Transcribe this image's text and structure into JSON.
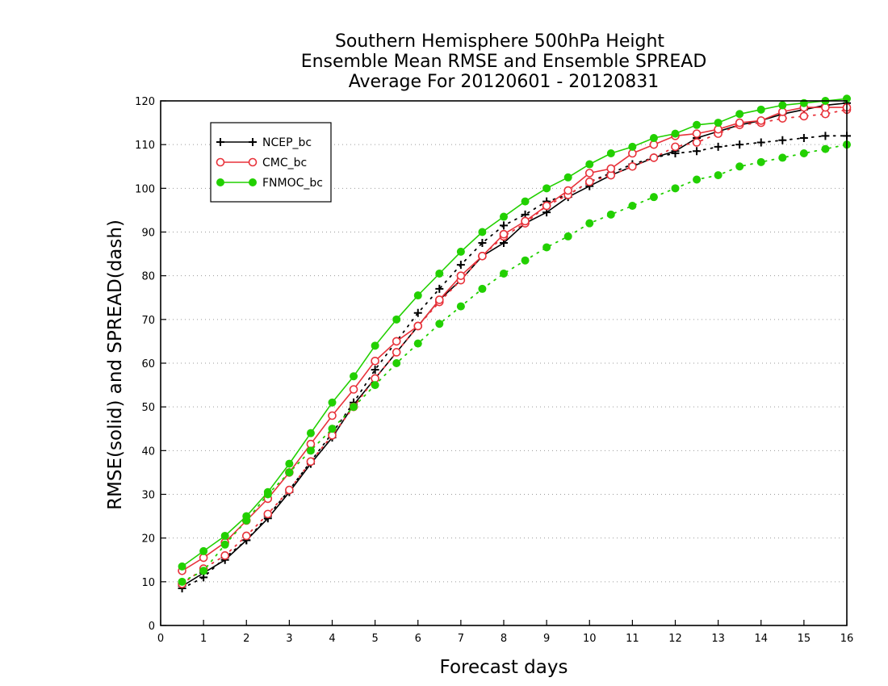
{
  "chart_data": {
    "type": "line",
    "title_lines": [
      "Southern Hemisphere 500hPa Height",
      "Ensemble Mean RMSE and Ensemble SPREAD",
      "Average For 20120601 - 20120831"
    ],
    "xlabel": "Forecast days",
    "ylabel": "RMSE(solid) and SPREAD(dash)",
    "xlim": [
      0,
      16
    ],
    "ylim": [
      0,
      120
    ],
    "xticks": [
      "0",
      "1",
      "2",
      "3",
      "4",
      "5",
      "6",
      "7",
      "8",
      "9",
      "10",
      "11",
      "12",
      "13",
      "14",
      "15",
      "16"
    ],
    "yticks": [
      "0",
      "10",
      "20",
      "30",
      "40",
      "50",
      "60",
      "70",
      "80",
      "90",
      "100",
      "110",
      "120"
    ],
    "grid": "horizontal dotted",
    "legend_position": "top-left",
    "x": [
      0.5,
      1,
      1.5,
      2,
      2.5,
      3,
      3.5,
      4,
      4.5,
      5,
      5.5,
      6,
      6.5,
      7,
      7.5,
      8,
      8.5,
      9,
      9.5,
      10,
      10.5,
      11,
      11.5,
      12,
      12.5,
      13,
      13.5,
      14,
      14.5,
      15,
      15.5,
      16
    ],
    "series": [
      {
        "name": "NCEP_bc",
        "color": "#000000",
        "marker": "plus",
        "rmse": [
          9,
          12,
          15,
          19.5,
          24.5,
          30.5,
          37,
          43,
          50.5,
          56.5,
          62.5,
          68.5,
          74.5,
          79,
          84.5,
          87.5,
          92,
          94.5,
          98,
          100.5,
          103,
          105,
          107,
          108.5,
          111.5,
          113,
          114.5,
          115.5,
          117,
          118,
          119,
          119.5
        ],
        "spread": [
          8.5,
          11,
          15.5,
          19.5,
          25,
          31,
          37.5,
          44,
          51,
          58.5,
          65,
          71.5,
          77,
          82.5,
          87.5,
          91.5,
          94,
          97,
          98.5,
          101.5,
          103.5,
          105.5,
          107,
          108,
          108.5,
          109.5,
          110,
          110.5,
          111,
          111.5,
          112,
          112
        ]
      },
      {
        "name": "CMC_bc",
        "color": "#e8323a",
        "marker": "open-circle",
        "rmse": [
          12.5,
          15.5,
          19,
          24,
          29,
          35,
          41.5,
          48,
          54,
          60.5,
          65,
          68.5,
          74.5,
          80,
          84.5,
          89.5,
          92.5,
          96,
          99.5,
          103.5,
          104.5,
          108,
          110,
          112,
          112.5,
          113.5,
          115,
          115.5,
          117.5,
          118.5,
          118.5,
          118.5
        ],
        "spread": [
          9.5,
          13,
          16,
          20.5,
          25.5,
          31,
          37.5,
          43.5,
          50,
          56.5,
          62.5,
          68.5,
          74,
          79,
          84.5,
          89,
          92,
          96,
          98.5,
          101.5,
          103,
          105,
          107,
          109.5,
          110.5,
          112.5,
          114.5,
          115,
          116,
          116.5,
          117,
          118
        ]
      },
      {
        "name": "FNMOC_bc",
        "color": "#22d000",
        "marker": "filled-circle",
        "rmse": [
          13.5,
          17,
          20.5,
          25,
          30.5,
          37,
          44,
          51,
          57,
          64,
          70,
          75.5,
          80.5,
          85.5,
          90,
          93.5,
          97,
          100,
          102.5,
          105.5,
          108,
          109.5,
          111.5,
          112.5,
          114.5,
          115,
          117,
          118,
          119,
          119.5,
          120,
          120.5
        ],
        "spread": [
          10,
          12.5,
          18.5,
          24,
          30,
          35,
          40,
          45,
          50,
          55,
          60,
          64.5,
          69,
          73,
          77,
          80.5,
          83.5,
          86.5,
          89,
          92,
          94,
          96,
          98,
          100,
          102,
          103,
          105,
          106,
          107,
          108,
          109,
          110
        ]
      }
    ]
  }
}
